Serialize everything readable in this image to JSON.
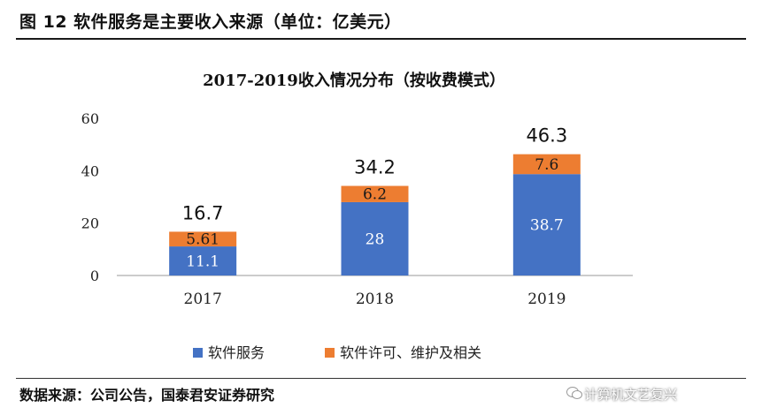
{
  "figure_title": "图 12  软件服务是主要收入来源（单位：亿美元）",
  "source": "数据来源：公司公告，国泰君安证券研究",
  "watermark": "计算机文艺复兴",
  "chart_data": {
    "type": "bar",
    "stacked": true,
    "title": "2017-2019收入情况分布（按收费模式）",
    "categories": [
      "2017",
      "2018",
      "2019"
    ],
    "series": [
      {
        "name": "软件服务",
        "values": [
          11.1,
          28,
          38.7
        ],
        "color": "#4472c4"
      },
      {
        "name": "软件许可、维护及相关",
        "values": [
          5.61,
          6.2,
          7.6
        ],
        "color": "#ed7d31"
      }
    ],
    "value_labels": [
      [
        "11.1",
        "28",
        "38.7"
      ],
      [
        "5.61",
        "6.2",
        "7.6"
      ]
    ],
    "totals": [
      "16.7",
      "34.2",
      "46.3"
    ],
    "yticks": [
      "0",
      "20",
      "40",
      "60"
    ],
    "ylim": [
      0,
      60
    ],
    "grid": false,
    "legend_position": "bottom"
  }
}
